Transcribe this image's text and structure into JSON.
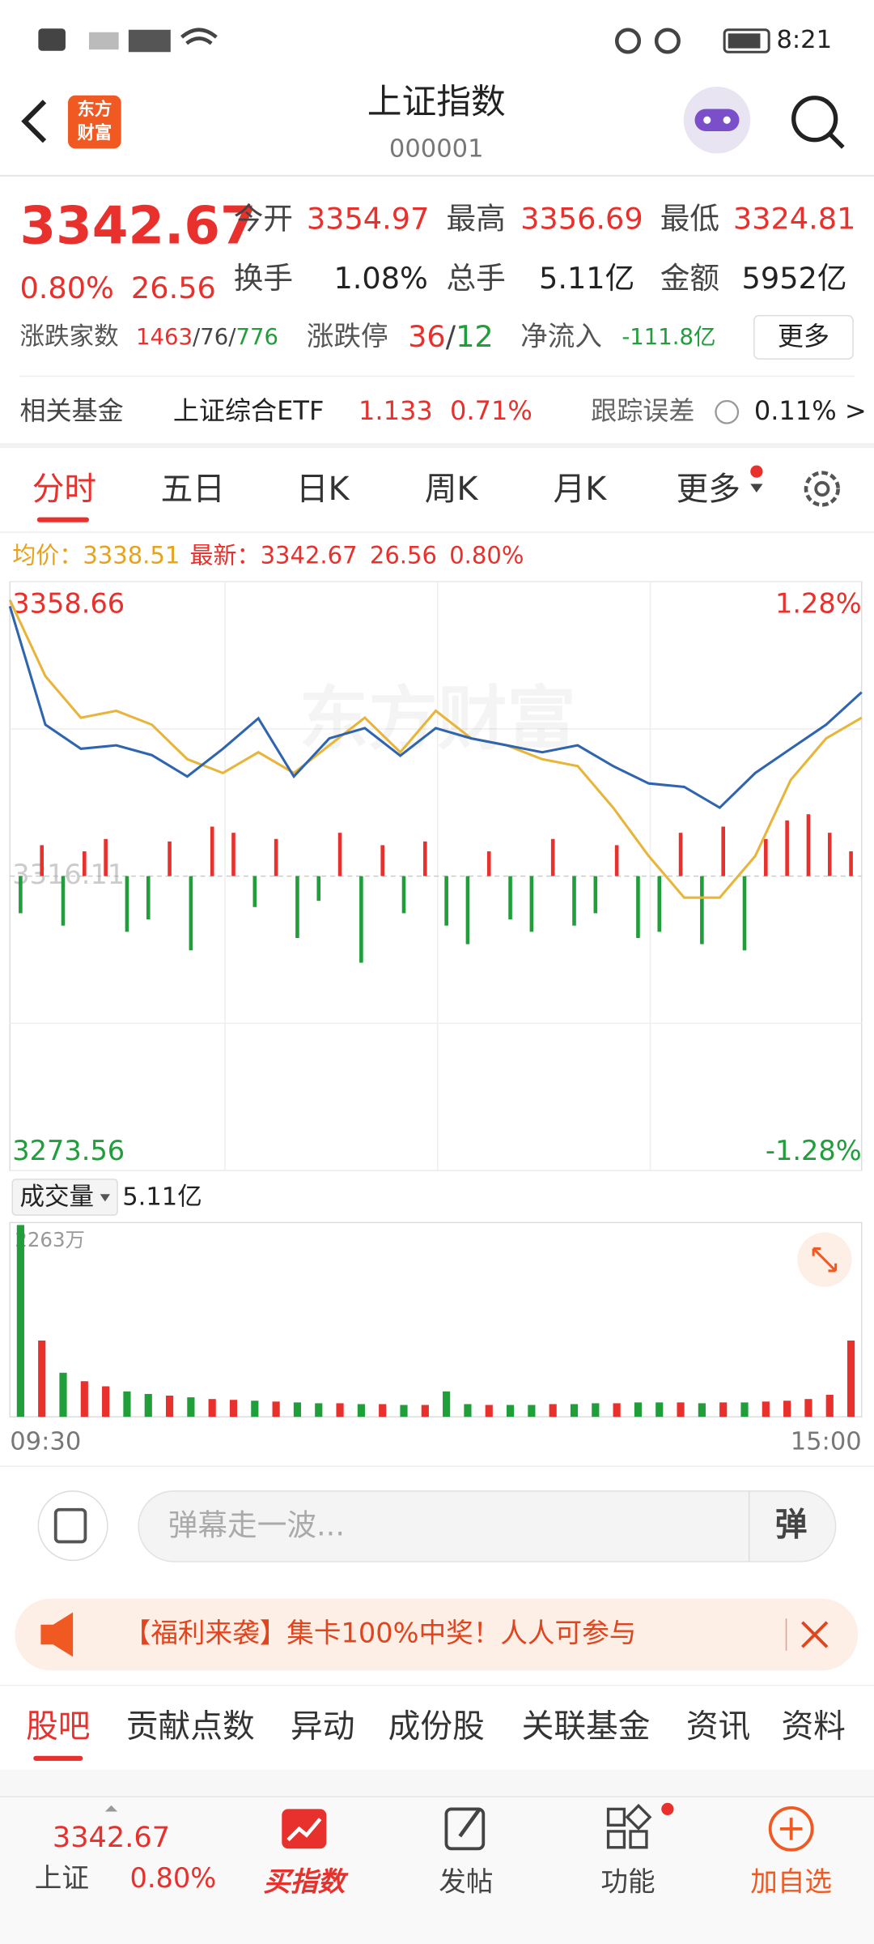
{
  "status_bar": {
    "time": "8:21"
  },
  "header": {
    "title": "上证指数",
    "code": "000001",
    "logo_top": "东方",
    "logo_bottom": "财富"
  },
  "quote": {
    "price": "3342.67",
    "change_pct": "0.80%",
    "change": "26.56",
    "open_label": "今开",
    "open": "3354.97",
    "high_label": "最高",
    "high": "3356.69",
    "low_label": "最低",
    "low": "3324.81",
    "turnover_label": "换手",
    "turnover": "1.08%",
    "volume_label": "总手",
    "volume": "5.11亿",
    "amount_label": "金额",
    "amount": "5952亿",
    "breadth_label": "涨跌家数",
    "up": "1463",
    "flat": "/76/",
    "down": "776",
    "limit_label": "涨跌停",
    "limit_up": "36",
    "limit_sep": "/",
    "limit_down": "12",
    "inflow_label": "净流入",
    "inflow": "-111.8亿",
    "more": "更多"
  },
  "fund": {
    "label": "相关基金",
    "name": "上证综合ETF",
    "price": "1.133",
    "pct": "0.71%",
    "error_label": "跟踪误差",
    "error": "0.11% >"
  },
  "tabs": [
    "分时",
    "五日",
    "日K",
    "周K",
    "月K",
    "更多"
  ],
  "info": {
    "avg_label": "均价：",
    "avg": "3338.51",
    "latest_label": "最新：",
    "latest": "3342.67",
    "change": "26.56",
    "pct": "0.80%"
  },
  "intraday": {
    "watermark": "东方财富",
    "ylim": [
      3273.56,
      3358.66
    ],
    "yticks": [
      3273.56,
      3316.11,
      3358.66
    ],
    "top_pct": "1.28%",
    "bottom_pct": "-1.28%",
    "price": [
      3355.1,
      3338,
      3334.5,
      3335,
      3333.6,
      3330.5,
      3334.5,
      3338.9,
      3330.5,
      3336,
      3337.5,
      3333.5,
      3337.5,
      3336,
      3335,
      3334,
      3335,
      3332,
      3329.5,
      3329,
      3326,
      3331,
      3334.5,
      3338,
      3342.67
    ],
    "avg": [
      3356,
      3345,
      3339,
      3340,
      3338,
      3333,
      3331,
      3334,
      3331,
      3335,
      3339,
      3334,
      3340,
      3336,
      3335,
      3333,
      3332,
      3326,
      3319,
      3313,
      3313,
      3319,
      3330,
      3336,
      3339
    ],
    "flow": [
      -30,
      25,
      -40,
      20,
      30,
      -45,
      -35,
      28,
      -60,
      40,
      35,
      -25,
      30,
      -50,
      -20,
      35,
      -70,
      25,
      -30,
      28,
      -40,
      -55,
      20,
      -35,
      -45,
      30,
      -40,
      -30,
      25,
      -50,
      -45,
      35,
      -55,
      40,
      -60,
      30,
      45,
      50,
      35,
      20
    ]
  },
  "volume": {
    "selector": "成交量",
    "total": "5.11亿",
    "ylim": [
      0,
      2263
    ],
    "max_tick": {
      "value": 2263,
      "label": "2263万"
    },
    "values": [
      2263,
      900,
      520,
      420,
      360,
      300,
      270,
      250,
      230,
      210,
      200,
      190,
      180,
      170,
      160,
      160,
      150,
      150,
      140,
      140,
      300,
      150,
      140,
      140,
      140,
      150,
      150,
      160,
      160,
      170,
      170,
      170,
      160,
      170,
      170,
      180,
      190,
      210,
      260,
      900
    ],
    "time_start": "09:30",
    "time_end": "15:00"
  },
  "comment": {
    "placeholder": "弹幕走一波...",
    "button": "弹"
  },
  "banner": {
    "text": "【福利来袭】集卡100%中奖！人人可参与"
  },
  "sub_tabs": [
    "股吧",
    "贡献点数",
    "异动",
    "成份股",
    "关联基金",
    "资讯",
    "资料"
  ],
  "nav": {
    "index_price": "3342.67",
    "index_name": "上证",
    "index_pct": "0.80%",
    "items": [
      "买指数",
      "发帖",
      "功能",
      "加自选"
    ]
  }
}
